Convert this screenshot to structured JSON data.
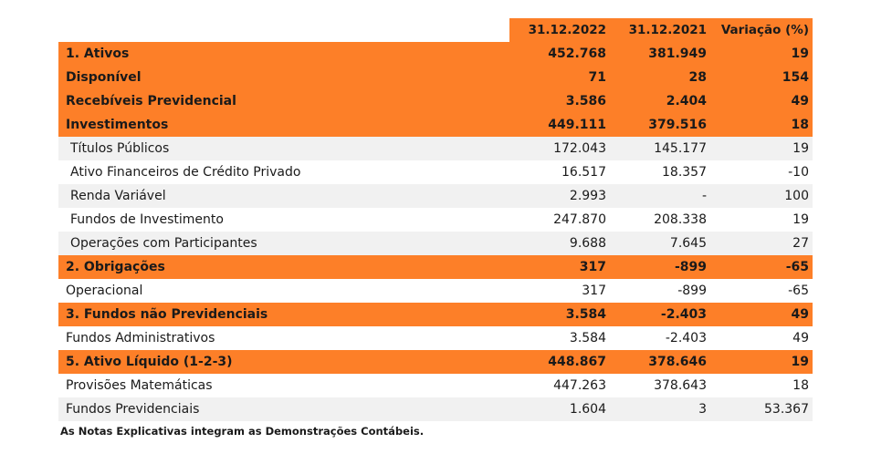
{
  "header": {
    "col1": "31.12.2022",
    "col2": "31.12.2021",
    "col3": "Variação (%)"
  },
  "rows": [
    {
      "label": "1. Ativos",
      "v2022": "452.768",
      "v2021": "381.949",
      "var": "19",
      "style": "orange",
      "indent": false
    },
    {
      "label": "Disponível",
      "v2022": "71",
      "v2021": "28",
      "var": "154",
      "style": "orange",
      "indent": false
    },
    {
      "label": "Recebíveis Previdencial",
      "v2022": "3.586",
      "v2021": "2.404",
      "var": "49",
      "style": "orange",
      "indent": false
    },
    {
      "label": "Investimentos",
      "v2022": "449.111",
      "v2021": "379.516",
      "var": "18",
      "style": "orange",
      "indent": false
    },
    {
      "label": "Títulos Públicos",
      "v2022": "172.043",
      "v2021": "145.177",
      "var": "19",
      "style": "gray",
      "indent": true
    },
    {
      "label": "Ativo Financeiros de Crédito Privado",
      "v2022": "16.517",
      "v2021": "18.357",
      "var": "-10",
      "style": "white",
      "indent": true
    },
    {
      "label": "Renda Variável",
      "v2022": "2.993",
      "v2021": "-",
      "var": "100",
      "style": "gray",
      "indent": true
    },
    {
      "label": "Fundos de Investimento",
      "v2022": "247.870",
      "v2021": "208.338",
      "var": "19",
      "style": "white",
      "indent": true
    },
    {
      "label": "Operações com Participantes",
      "v2022": "9.688",
      "v2021": "7.645",
      "var": "27",
      "style": "gray",
      "indent": true
    },
    {
      "label": "2. Obrigações",
      "v2022": "317",
      "v2021": "-899",
      "var": "-65",
      "style": "orange",
      "indent": false
    },
    {
      "label": "Operacional",
      "v2022": "317",
      "v2021": "-899",
      "var": "-65",
      "style": "white",
      "indent": false
    },
    {
      "label": "3. Fundos não Previdenciais",
      "v2022": "3.584",
      "v2021": "-2.403",
      "var": "49",
      "style": "orange",
      "indent": false
    },
    {
      "label": "Fundos Administrativos",
      "v2022": "3.584",
      "v2021": "-2.403",
      "var": "49",
      "style": "white",
      "indent": false
    },
    {
      "label": "5. Ativo Líquido (1-2-3)",
      "v2022": "448.867",
      "v2021": "378.646",
      "var": "19",
      "style": "orange",
      "indent": false
    },
    {
      "label": "Provisões Matemáticas",
      "v2022": "447.263",
      "v2021": "378.643",
      "var": "18",
      "style": "white",
      "indent": false
    },
    {
      "label": "Fundos Previdenciais",
      "v2022": "1.604",
      "v2021": "3",
      "var": "53.367",
      "style": "gray",
      "indent": false
    }
  ],
  "footnote": "As Notas Explicativas integram as Demonstrações Contábeis."
}
